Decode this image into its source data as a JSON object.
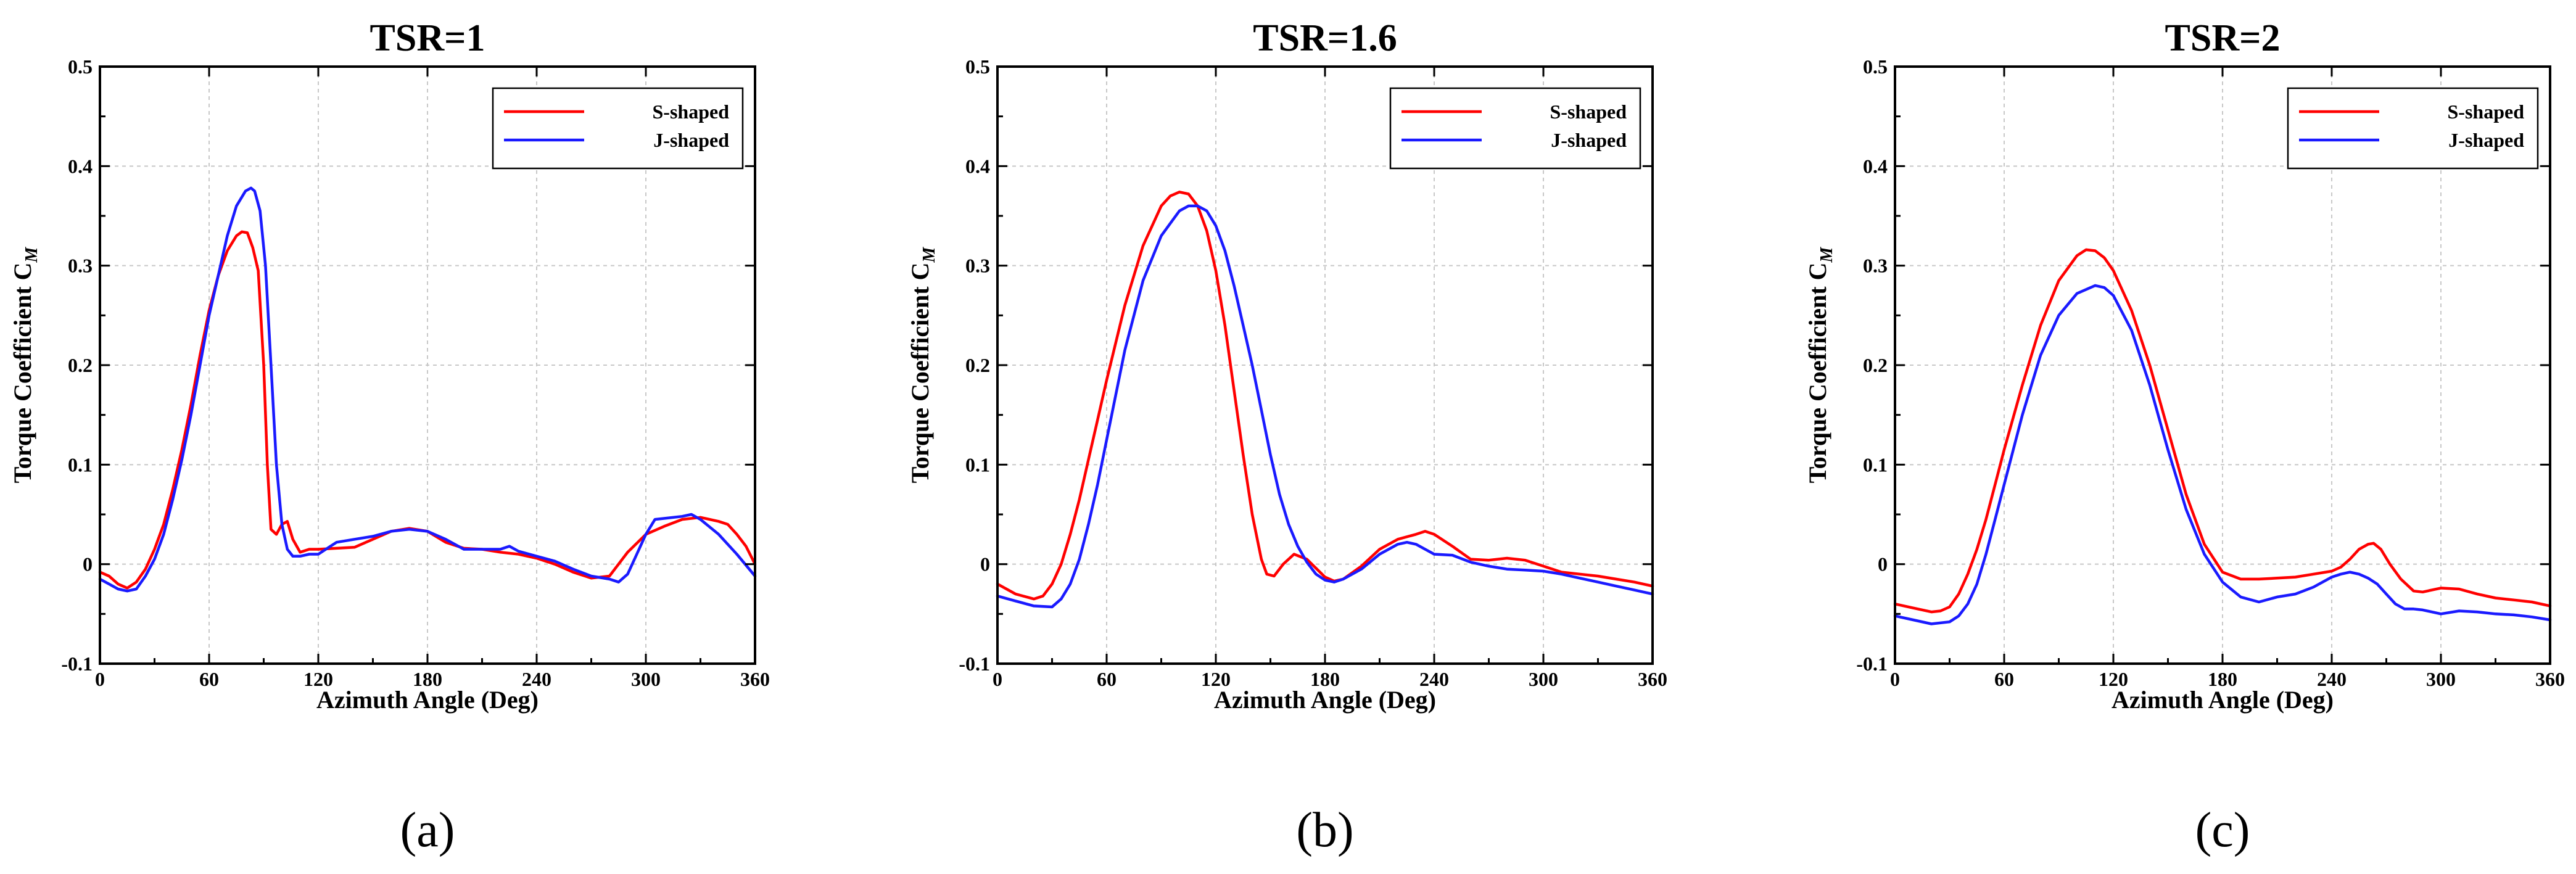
{
  "colors": {
    "s_shaped": "#ff0000",
    "j_shaped": "#1a1aff"
  },
  "chart_data": [
    {
      "type": "line",
      "title": "TSR=1",
      "caption": "(a)",
      "xlabel": "Azimuth Angle (Deg)",
      "ylabel": "Torque Coefficient C",
      "ylabel_sub": "M",
      "xlim": [
        0,
        360
      ],
      "ylim": [
        -0.1,
        0.5
      ],
      "xticks": [
        0,
        60,
        120,
        180,
        240,
        300,
        360
      ],
      "yticks": [
        -0.1,
        0,
        0.1,
        0.2,
        0.3,
        0.4,
        0.5
      ],
      "ytick_labels": [
        "-0.1",
        "0",
        "0.1",
        "0.2",
        "0.3",
        "0.4",
        "0.5"
      ],
      "grid": true,
      "legend": "top-right",
      "series": [
        {
          "name": "S-shaped",
          "color": "#ff0000",
          "x": [
            0,
            5,
            10,
            15,
            20,
            25,
            30,
            35,
            40,
            45,
            50,
            55,
            60,
            65,
            70,
            75,
            78,
            81,
            84,
            87,
            90,
            92,
            94,
            97,
            100,
            103,
            106,
            110,
            115,
            120,
            130,
            140,
            150,
            160,
            170,
            180,
            190,
            200,
            210,
            220,
            230,
            240,
            250,
            260,
            270,
            280,
            290,
            300,
            310,
            320,
            330,
            340,
            345,
            350,
            355,
            360
          ],
          "y": [
            -0.008,
            -0.012,
            -0.02,
            -0.024,
            -0.018,
            -0.005,
            0.015,
            0.04,
            0.075,
            0.115,
            0.16,
            0.21,
            0.255,
            0.29,
            0.315,
            0.33,
            0.334,
            0.333,
            0.318,
            0.295,
            0.2,
            0.1,
            0.035,
            0.03,
            0.04,
            0.043,
            0.025,
            0.012,
            0.015,
            0.015,
            0.016,
            0.017,
            0.025,
            0.033,
            0.036,
            0.033,
            0.022,
            0.016,
            0.015,
            0.012,
            0.01,
            0.006,
            0.0,
            -0.008,
            -0.014,
            -0.012,
            0.012,
            0.03,
            0.038,
            0.045,
            0.047,
            0.043,
            0.04,
            0.03,
            0.018,
            0.0
          ]
        },
        {
          "name": "J-shaped",
          "color": "#1a1aff",
          "x": [
            0,
            5,
            10,
            15,
            20,
            25,
            30,
            35,
            40,
            45,
            50,
            55,
            60,
            65,
            70,
            75,
            80,
            83,
            85,
            88,
            91,
            94,
            97,
            100,
            103,
            106,
            110,
            115,
            120,
            130,
            140,
            150,
            160,
            170,
            180,
            190,
            200,
            210,
            220,
            225,
            230,
            240,
            250,
            260,
            270,
            280,
            285,
            290,
            295,
            300,
            305,
            310,
            320,
            325,
            330,
            340,
            350,
            360
          ],
          "y": [
            -0.015,
            -0.02,
            -0.025,
            -0.027,
            -0.025,
            -0.012,
            0.005,
            0.03,
            0.065,
            0.105,
            0.15,
            0.2,
            0.25,
            0.29,
            0.33,
            0.36,
            0.375,
            0.378,
            0.375,
            0.355,
            0.3,
            0.2,
            0.1,
            0.04,
            0.015,
            0.008,
            0.008,
            0.01,
            0.01,
            0.022,
            0.025,
            0.028,
            0.033,
            0.035,
            0.033,
            0.025,
            0.015,
            0.015,
            0.015,
            0.018,
            0.013,
            0.008,
            0.003,
            -0.005,
            -0.012,
            -0.015,
            -0.018,
            -0.01,
            0.01,
            0.03,
            0.045,
            0.046,
            0.048,
            0.05,
            0.045,
            0.03,
            0.01,
            -0.012
          ]
        }
      ]
    },
    {
      "type": "line",
      "title": "TSR=1.6",
      "caption": "(b)",
      "xlabel": "Azimuth Angle (Deg)",
      "ylabel": "Torque Coefficient C",
      "ylabel_sub": "M",
      "xlim": [
        0,
        360
      ],
      "ylim": [
        -0.1,
        0.5
      ],
      "xticks": [
        0,
        60,
        120,
        180,
        240,
        300,
        360
      ],
      "yticks": [
        -0.1,
        0,
        0.1,
        0.2,
        0.3,
        0.4,
        0.5
      ],
      "ytick_labels": [
        "-0.1",
        "0",
        "0.1",
        "0.2",
        "0.3",
        "0.4",
        "0.5"
      ],
      "grid": true,
      "legend": "top-right",
      "series": [
        {
          "name": "S-shaped",
          "color": "#ff0000",
          "x": [
            0,
            10,
            20,
            25,
            30,
            35,
            40,
            45,
            50,
            55,
            60,
            70,
            80,
            90,
            95,
            100,
            105,
            110,
            115,
            120,
            125,
            130,
            135,
            140,
            145,
            148,
            152,
            157,
            163,
            170,
            180,
            185,
            190,
            200,
            210,
            220,
            230,
            235,
            240,
            250,
            260,
            270,
            280,
            290,
            300,
            310,
            320,
            330,
            340,
            350,
            360
          ],
          "y": [
            -0.02,
            -0.03,
            -0.035,
            -0.032,
            -0.02,
            0.0,
            0.03,
            0.065,
            0.105,
            0.145,
            0.185,
            0.26,
            0.32,
            0.36,
            0.37,
            0.374,
            0.372,
            0.36,
            0.335,
            0.295,
            0.24,
            0.175,
            0.11,
            0.05,
            0.005,
            -0.01,
            -0.012,
            0.0,
            0.01,
            0.005,
            -0.013,
            -0.017,
            -0.015,
            -0.002,
            0.015,
            0.025,
            0.03,
            0.033,
            0.03,
            0.018,
            0.005,
            0.004,
            0.006,
            0.004,
            -0.002,
            -0.008,
            -0.01,
            -0.012,
            -0.015,
            -0.018,
            -0.022
          ]
        },
        {
          "name": "J-shaped",
          "color": "#1a1aff",
          "x": [
            0,
            10,
            20,
            30,
            35,
            40,
            45,
            50,
            55,
            60,
            70,
            80,
            90,
            100,
            105,
            110,
            115,
            120,
            125,
            130,
            135,
            140,
            145,
            150,
            155,
            160,
            165,
            170,
            175,
            180,
            185,
            190,
            200,
            210,
            220,
            225,
            230,
            240,
            250,
            260,
            270,
            280,
            290,
            300,
            310,
            320,
            330,
            340,
            350,
            360
          ],
          "y": [
            -0.032,
            -0.037,
            -0.042,
            -0.043,
            -0.035,
            -0.02,
            0.005,
            0.04,
            0.08,
            0.125,
            0.215,
            0.285,
            0.33,
            0.355,
            0.36,
            0.36,
            0.355,
            0.34,
            0.315,
            0.28,
            0.24,
            0.2,
            0.155,
            0.11,
            0.07,
            0.04,
            0.018,
            0.002,
            -0.01,
            -0.016,
            -0.018,
            -0.015,
            -0.005,
            0.01,
            0.02,
            0.022,
            0.02,
            0.01,
            0.009,
            0.002,
            -0.002,
            -0.005,
            -0.006,
            -0.007,
            -0.01,
            -0.014,
            -0.018,
            -0.022,
            -0.026,
            -0.03
          ]
        }
      ]
    },
    {
      "type": "line",
      "title": "TSR=2",
      "caption": "(c)",
      "xlabel": "Azimuth Angle (Deg)",
      "ylabel": "Torque Coefficient C",
      "ylabel_sub": "M",
      "xlim": [
        0,
        360
      ],
      "ylim": [
        -0.1,
        0.5
      ],
      "xticks": [
        0,
        60,
        120,
        180,
        240,
        300,
        360
      ],
      "yticks": [
        -0.1,
        0,
        0.1,
        0.2,
        0.3,
        0.4,
        0.5
      ],
      "ytick_labels": [
        "-0.1",
        "0",
        "0.1",
        "0.2",
        "0.3",
        "0.4",
        "0.5"
      ],
      "grid": true,
      "legend": "top-right",
      "series": [
        {
          "name": "S-shaped",
          "color": "#ff0000",
          "x": [
            0,
            10,
            20,
            25,
            30,
            35,
            40,
            45,
            50,
            55,
            60,
            70,
            80,
            90,
            100,
            105,
            110,
            115,
            120,
            130,
            140,
            150,
            160,
            170,
            180,
            190,
            200,
            210,
            220,
            230,
            240,
            245,
            250,
            255,
            260,
            263,
            267,
            272,
            278,
            285,
            290,
            300,
            310,
            320,
            330,
            340,
            350,
            360
          ],
          "y": [
            -0.04,
            -0.044,
            -0.048,
            -0.047,
            -0.043,
            -0.03,
            -0.01,
            0.015,
            0.045,
            0.08,
            0.115,
            0.18,
            0.24,
            0.285,
            0.31,
            0.316,
            0.315,
            0.308,
            0.295,
            0.255,
            0.2,
            0.135,
            0.07,
            0.02,
            -0.008,
            -0.015,
            -0.015,
            -0.014,
            -0.013,
            -0.01,
            -0.007,
            -0.003,
            0.005,
            0.015,
            0.02,
            0.021,
            0.015,
            0.0,
            -0.015,
            -0.027,
            -0.028,
            -0.024,
            -0.025,
            -0.03,
            -0.034,
            -0.036,
            -0.038,
            -0.042
          ]
        },
        {
          "name": "J-shaped",
          "color": "#1a1aff",
          "x": [
            0,
            10,
            20,
            30,
            35,
            40,
            45,
            50,
            55,
            60,
            70,
            80,
            90,
            100,
            110,
            115,
            120,
            130,
            140,
            150,
            160,
            170,
            180,
            190,
            200,
            210,
            220,
            230,
            240,
            245,
            250,
            255,
            260,
            265,
            270,
            275,
            280,
            285,
            290,
            300,
            310,
            320,
            330,
            340,
            350,
            360
          ],
          "y": [
            -0.052,
            -0.056,
            -0.06,
            -0.058,
            -0.052,
            -0.04,
            -0.02,
            0.01,
            0.045,
            0.08,
            0.15,
            0.21,
            0.25,
            0.272,
            0.28,
            0.278,
            0.27,
            0.235,
            0.18,
            0.115,
            0.055,
            0.01,
            -0.018,
            -0.033,
            -0.038,
            -0.033,
            -0.03,
            -0.023,
            -0.013,
            -0.01,
            -0.008,
            -0.01,
            -0.014,
            -0.02,
            -0.03,
            -0.04,
            -0.045,
            -0.045,
            -0.046,
            -0.05,
            -0.047,
            -0.048,
            -0.05,
            -0.051,
            -0.053,
            -0.056
          ]
        }
      ]
    }
  ]
}
